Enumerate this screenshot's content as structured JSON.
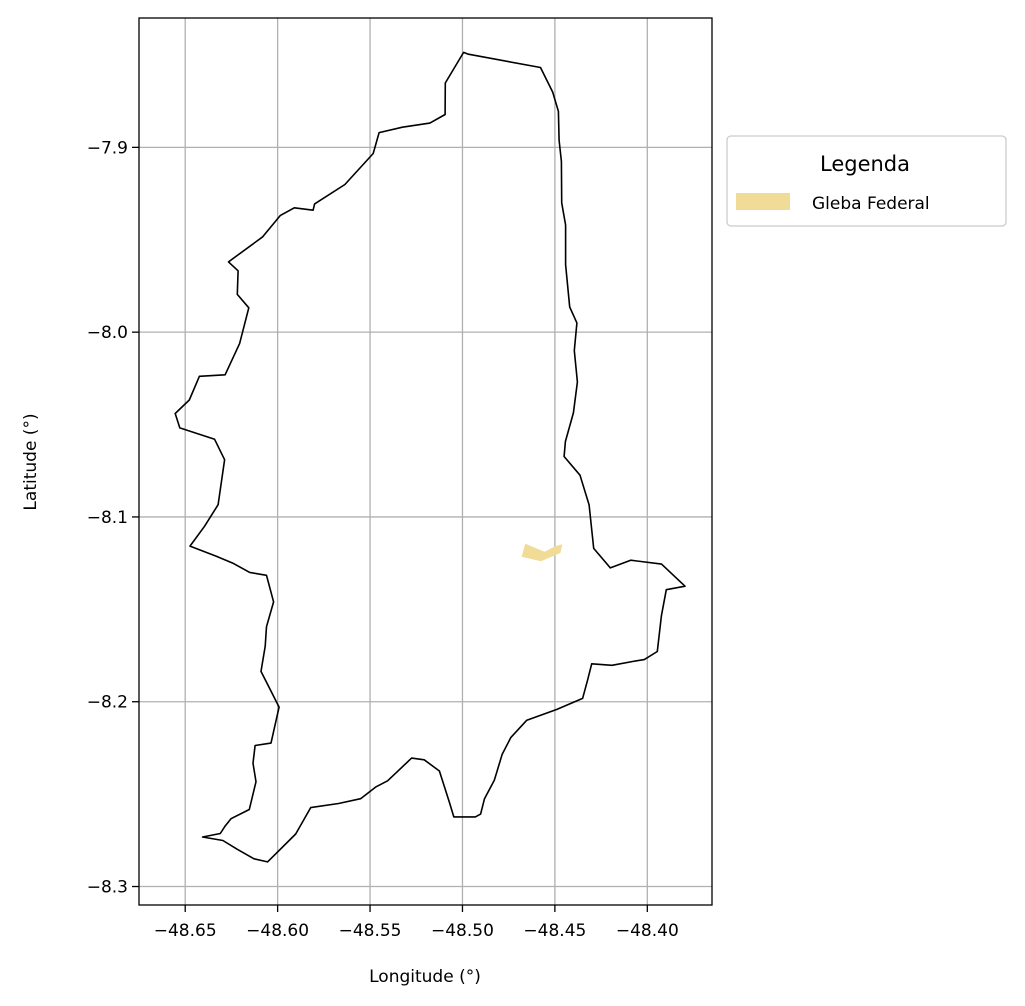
{
  "map": {
    "x_axis": {
      "label": "Longitude (°)",
      "ticks": [
        {
          "value": -48.65,
          "label": "−48.65"
        },
        {
          "value": -48.6,
          "label": "−48.60"
        },
        {
          "value": -48.55,
          "label": "−48.55"
        },
        {
          "value": -48.5,
          "label": "−48.50"
        },
        {
          "value": -48.45,
          "label": "−48.45"
        },
        {
          "value": -48.4,
          "label": "−48.40"
        }
      ],
      "range": [
        -48.675,
        -48.365
      ]
    },
    "y_axis": {
      "label": "Latitude (°)",
      "ticks": [
        {
          "value": -7.9,
          "label": "−7.9"
        },
        {
          "value": -8.0,
          "label": "−8.0"
        },
        {
          "value": -8.1,
          "label": "−8.1"
        },
        {
          "value": -8.2,
          "label": "−8.2"
        },
        {
          "value": -8.3,
          "label": "−8.3"
        }
      ],
      "range": [
        -8.31,
        -7.83
      ]
    },
    "grid": true,
    "legend": {
      "title": "Legenda",
      "placement": "right, outside plot",
      "items": [
        {
          "label": "Gleba Federal",
          "color": "#f0dc96"
        }
      ]
    },
    "colors": {
      "boundary": "#000000",
      "gleba": "#f0dc96",
      "grid": "#b0b0b0"
    },
    "boundary": [
      [
        -48.4994,
        -7.8486
      ],
      [
        -48.4968,
        -7.8496
      ],
      [
        -48.4578,
        -7.8568
      ],
      [
        -48.4512,
        -7.8701
      ],
      [
        -48.4481,
        -7.8805
      ],
      [
        -48.4477,
        -7.8962
      ],
      [
        -48.4465,
        -7.9076
      ],
      [
        -48.4463,
        -7.93
      ],
      [
        -48.4442,
        -7.942
      ],
      [
        -48.4442,
        -7.9635
      ],
      [
        -48.442,
        -7.9864
      ],
      [
        -48.4381,
        -7.995
      ],
      [
        -48.4395,
        -8.01
      ],
      [
        -48.4378,
        -8.027
      ],
      [
        -48.44,
        -8.0437
      ],
      [
        -48.4443,
        -8.0592
      ],
      [
        -48.445,
        -8.0673
      ],
      [
        -48.4364,
        -8.0774
      ],
      [
        -48.4315,
        -8.0935
      ],
      [
        -48.429,
        -8.117
      ],
      [
        -48.42,
        -8.1276
      ],
      [
        -48.409,
        -8.1234
      ],
      [
        -48.3923,
        -8.1255
      ],
      [
        -48.3796,
        -8.1375
      ],
      [
        -48.3897,
        -8.1394
      ],
      [
        -48.3924,
        -8.1535
      ],
      [
        -48.3946,
        -8.1728
      ],
      [
        -48.4016,
        -8.1772
      ],
      [
        -48.4069,
        -8.178
      ],
      [
        -48.4191,
        -8.1803
      ],
      [
        -48.4301,
        -8.1795
      ],
      [
        -48.4325,
        -8.1891
      ],
      [
        -48.435,
        -8.1982
      ],
      [
        -48.4491,
        -8.2042
      ],
      [
        -48.4652,
        -8.21
      ],
      [
        -48.4738,
        -8.2193
      ],
      [
        -48.4785,
        -8.2284
      ],
      [
        -48.4828,
        -8.2425
      ],
      [
        -48.4881,
        -8.2525
      ],
      [
        -48.4902,
        -8.2608
      ],
      [
        -48.493,
        -8.2623
      ],
      [
        -48.5047,
        -8.2623
      ],
      [
        -48.507,
        -8.2546
      ],
      [
        -48.5125,
        -8.2375
      ],
      [
        -48.5207,
        -8.2314
      ],
      [
        -48.5275,
        -8.2305
      ],
      [
        -48.5405,
        -8.2428
      ],
      [
        -48.547,
        -8.2462
      ],
      [
        -48.5551,
        -8.2525
      ],
      [
        -48.567,
        -8.2551
      ],
      [
        -48.5821,
        -8.2573
      ],
      [
        -48.5902,
        -8.2716
      ],
      [
        -48.6017,
        -8.283
      ],
      [
        -48.6055,
        -8.2867
      ],
      [
        -48.6128,
        -8.285
      ],
      [
        -48.6219,
        -8.2798
      ],
      [
        -48.6296,
        -8.2751
      ],
      [
        -48.6406,
        -8.2732
      ],
      [
        -48.631,
        -8.2713
      ],
      [
        -48.6284,
        -8.2673
      ],
      [
        -48.6252,
        -8.2633
      ],
      [
        -48.6153,
        -8.2583
      ],
      [
        -48.6117,
        -8.2433
      ],
      [
        -48.6133,
        -8.2333
      ],
      [
        -48.6122,
        -8.2237
      ],
      [
        -48.6036,
        -8.2224
      ],
      [
        -48.5992,
        -8.2029
      ],
      [
        -48.609,
        -8.1836
      ],
      [
        -48.6067,
        -8.17
      ],
      [
        -48.606,
        -8.1594
      ],
      [
        -48.6022,
        -8.146
      ],
      [
        -48.606,
        -8.1316
      ],
      [
        -48.6151,
        -8.13
      ],
      [
        -48.6243,
        -8.125
      ],
      [
        -48.6332,
        -8.1213
      ],
      [
        -48.6474,
        -8.1158
      ],
      [
        -48.6395,
        -8.105
      ],
      [
        -48.6322,
        -8.0934
      ],
      [
        -48.6287,
        -8.069
      ],
      [
        -48.6341,
        -8.058
      ],
      [
        -48.6529,
        -8.0518
      ],
      [
        -48.6554,
        -8.044
      ],
      [
        -48.6478,
        -8.0367
      ],
      [
        -48.6423,
        -8.0239
      ],
      [
        -48.6284,
        -8.0231
      ],
      [
        -48.6206,
        -8.0062
      ],
      [
        -48.6156,
        -7.9868
      ],
      [
        -48.6218,
        -7.9796
      ],
      [
        -48.6214,
        -7.9668
      ],
      [
        -48.6266,
        -7.962
      ],
      [
        -48.6081,
        -7.9484
      ],
      [
        -48.5985,
        -7.9368
      ],
      [
        -48.591,
        -7.9327
      ],
      [
        -48.5808,
        -7.934
      ],
      [
        -48.58,
        -7.9306
      ],
      [
        -48.5636,
        -7.9201
      ],
      [
        -48.5483,
        -7.9033
      ],
      [
        -48.5451,
        -7.892
      ],
      [
        -48.5325,
        -7.8891
      ],
      [
        -48.5176,
        -7.8869
      ],
      [
        -48.5094,
        -7.8822
      ],
      [
        -48.5093,
        -7.8652
      ],
      [
        -48.4994,
        -7.8486
      ]
    ],
    "gleba_federal": [
      [
        -48.466,
        -8.1145
      ],
      [
        -48.4555,
        -8.1188
      ],
      [
        -48.4502,
        -8.116
      ],
      [
        -48.446,
        -8.1148
      ],
      [
        -48.447,
        -8.1195
      ],
      [
        -48.4575,
        -8.124
      ],
      [
        -48.468,
        -8.1215
      ],
      [
        -48.466,
        -8.1145
      ]
    ]
  }
}
